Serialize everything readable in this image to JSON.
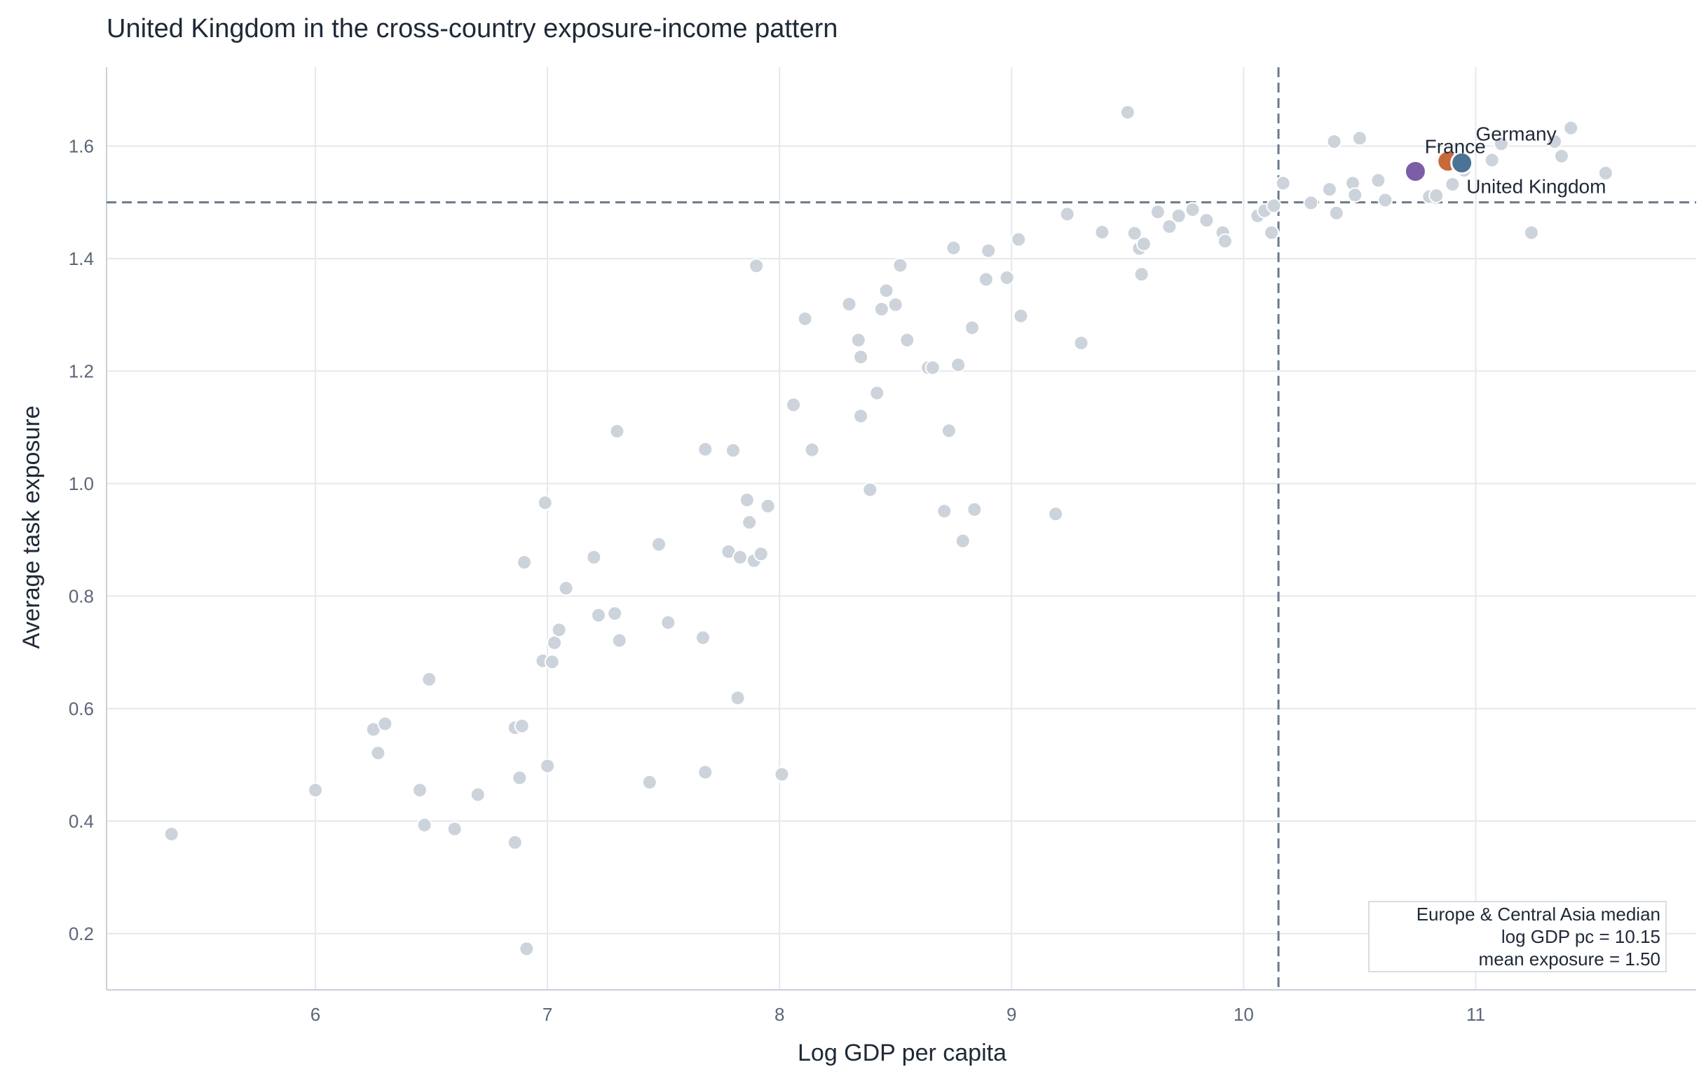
{
  "chart_data": {
    "type": "scatter",
    "title": "United Kingdom in the cross-country exposure-income pattern",
    "xlabel": "Log GDP per capita",
    "ylabel": "Average task exposure",
    "xlim": [
      5.1,
      11.95
    ],
    "ylim": [
      0.1,
      1.74
    ],
    "xticks": [
      6,
      7,
      8,
      9,
      10,
      11
    ],
    "yticks": [
      0.2,
      0.4,
      0.6,
      0.8,
      1.0,
      1.2,
      1.4,
      1.6
    ],
    "ytick_labels": [
      "0.2",
      "0.4",
      "0.6",
      "0.8",
      "1.0",
      "1.2",
      "1.4",
      "1.6"
    ],
    "grid": true,
    "colors": {
      "background_points": "#cdd3db",
      "reference_lines": "#6b7a8d",
      "grid": "#e5e8ec",
      "axis": "#c9d0d9"
    },
    "reference_lines": {
      "x": 10.15,
      "y": 1.5
    },
    "series": [
      {
        "points": [
          [
            5.38,
            0.377
          ],
          [
            6.0,
            0.455
          ],
          [
            6.25,
            0.563
          ],
          [
            6.27,
            0.521
          ],
          [
            6.3,
            0.573
          ],
          [
            6.45,
            0.455
          ],
          [
            6.47,
            0.393
          ],
          [
            6.49,
            0.652
          ],
          [
            6.6,
            0.386
          ],
          [
            6.7,
            0.447
          ],
          [
            6.86,
            0.362
          ],
          [
            6.86,
            0.566
          ],
          [
            6.88,
            0.477
          ],
          [
            6.89,
            0.569
          ],
          [
            6.9,
            0.86
          ],
          [
            6.91,
            0.173
          ],
          [
            6.98,
            0.685
          ],
          [
            6.99,
            0.966
          ],
          [
            7.0,
            0.498
          ],
          [
            7.02,
            0.683
          ],
          [
            7.03,
            0.717
          ],
          [
            7.05,
            0.74
          ],
          [
            7.08,
            0.814
          ],
          [
            7.2,
            0.869
          ],
          [
            7.22,
            0.766
          ],
          [
            7.29,
            0.769
          ],
          [
            7.3,
            1.093
          ],
          [
            7.31,
            0.721
          ],
          [
            7.44,
            0.469
          ],
          [
            7.48,
            0.892
          ],
          [
            7.52,
            0.753
          ],
          [
            7.67,
            0.726
          ],
          [
            7.68,
            1.061
          ],
          [
            7.68,
            0.487
          ],
          [
            7.78,
            0.879
          ],
          [
            7.8,
            1.059
          ],
          [
            7.82,
            0.619
          ],
          [
            7.83,
            0.869
          ],
          [
            7.86,
            0.971
          ],
          [
            7.87,
            0.931
          ],
          [
            7.89,
            0.863
          ],
          [
            7.9,
            1.387
          ],
          [
            7.92,
            0.875
          ],
          [
            7.95,
            0.96
          ],
          [
            8.01,
            0.483
          ],
          [
            8.06,
            1.14
          ],
          [
            8.11,
            1.293
          ],
          [
            8.14,
            1.06
          ],
          [
            8.3,
            1.319
          ],
          [
            8.34,
            1.255
          ],
          [
            8.35,
            1.225
          ],
          [
            8.35,
            1.12
          ],
          [
            8.39,
            0.989
          ],
          [
            8.42,
            1.161
          ],
          [
            8.44,
            1.31
          ],
          [
            8.46,
            1.343
          ],
          [
            8.5,
            1.318
          ],
          [
            8.52,
            1.388
          ],
          [
            8.55,
            1.255
          ],
          [
            8.64,
            1.206
          ],
          [
            8.66,
            1.206
          ],
          [
            8.71,
            0.951
          ],
          [
            8.73,
            1.094
          ],
          [
            8.75,
            1.419
          ],
          [
            8.77,
            1.211
          ],
          [
            8.79,
            0.898
          ],
          [
            8.83,
            1.277
          ],
          [
            8.84,
            0.954
          ],
          [
            8.89,
            1.363
          ],
          [
            8.9,
            1.414
          ],
          [
            8.98,
            1.366
          ],
          [
            9.03,
            1.434
          ],
          [
            9.04,
            1.298
          ],
          [
            9.19,
            0.946
          ],
          [
            9.24,
            1.479
          ],
          [
            9.3,
            1.25
          ],
          [
            9.39,
            1.447
          ],
          [
            9.5,
            1.66
          ],
          [
            9.53,
            1.445
          ],
          [
            9.55,
            1.418
          ],
          [
            9.56,
            1.372
          ],
          [
            9.57,
            1.426
          ],
          [
            9.63,
            1.483
          ],
          [
            9.68,
            1.457
          ],
          [
            9.72,
            1.476
          ],
          [
            9.78,
            1.487
          ],
          [
            9.84,
            1.468
          ],
          [
            9.91,
            1.446
          ],
          [
            9.92,
            1.431
          ],
          [
            10.06,
            1.476
          ],
          [
            10.09,
            1.485
          ],
          [
            10.12,
            1.446
          ],
          [
            10.13,
            1.494
          ],
          [
            10.17,
            1.534
          ],
          [
            10.29,
            1.499
          ],
          [
            10.37,
            1.523
          ],
          [
            10.39,
            1.608
          ],
          [
            10.4,
            1.481
          ],
          [
            10.47,
            1.534
          ],
          [
            10.48,
            1.513
          ],
          [
            10.5,
            1.614
          ],
          [
            10.58,
            1.539
          ],
          [
            10.61,
            1.504
          ],
          [
            10.8,
            1.51
          ],
          [
            10.83,
            1.512
          ],
          [
            10.9,
            1.532
          ],
          [
            10.91,
            1.566
          ],
          [
            10.95,
            1.557
          ],
          [
            11.07,
            1.575
          ],
          [
            11.11,
            1.604
          ],
          [
            11.34,
            1.608
          ],
          [
            11.37,
            1.582
          ],
          [
            11.41,
            1.632
          ],
          [
            11.24,
            1.446
          ],
          [
            11.56,
            1.552
          ]
        ]
      }
    ],
    "highlighted": [
      {
        "x": 10.74,
        "y": 1.555,
        "color": "#7b5ea7"
      },
      {
        "x": 10.88,
        "y": 1.573,
        "color": "#c8693a"
      },
      {
        "x": 10.94,
        "y": 1.57,
        "color": "#4a7396"
      }
    ],
    "annotations": [
      {
        "text": "Germany",
        "x": 11.0,
        "y": 1.622
      },
      {
        "text": "France",
        "x": 10.78,
        "y": 1.6
      },
      {
        "text": "United Kingdom",
        "x": 10.96,
        "y": 1.529
      }
    ],
    "note": {
      "lines": [
        "Europe & Central Asia median",
        "log GDP pc = 10.15",
        "mean exposure = 1.50"
      ],
      "placement": "bottom-right"
    }
  }
}
